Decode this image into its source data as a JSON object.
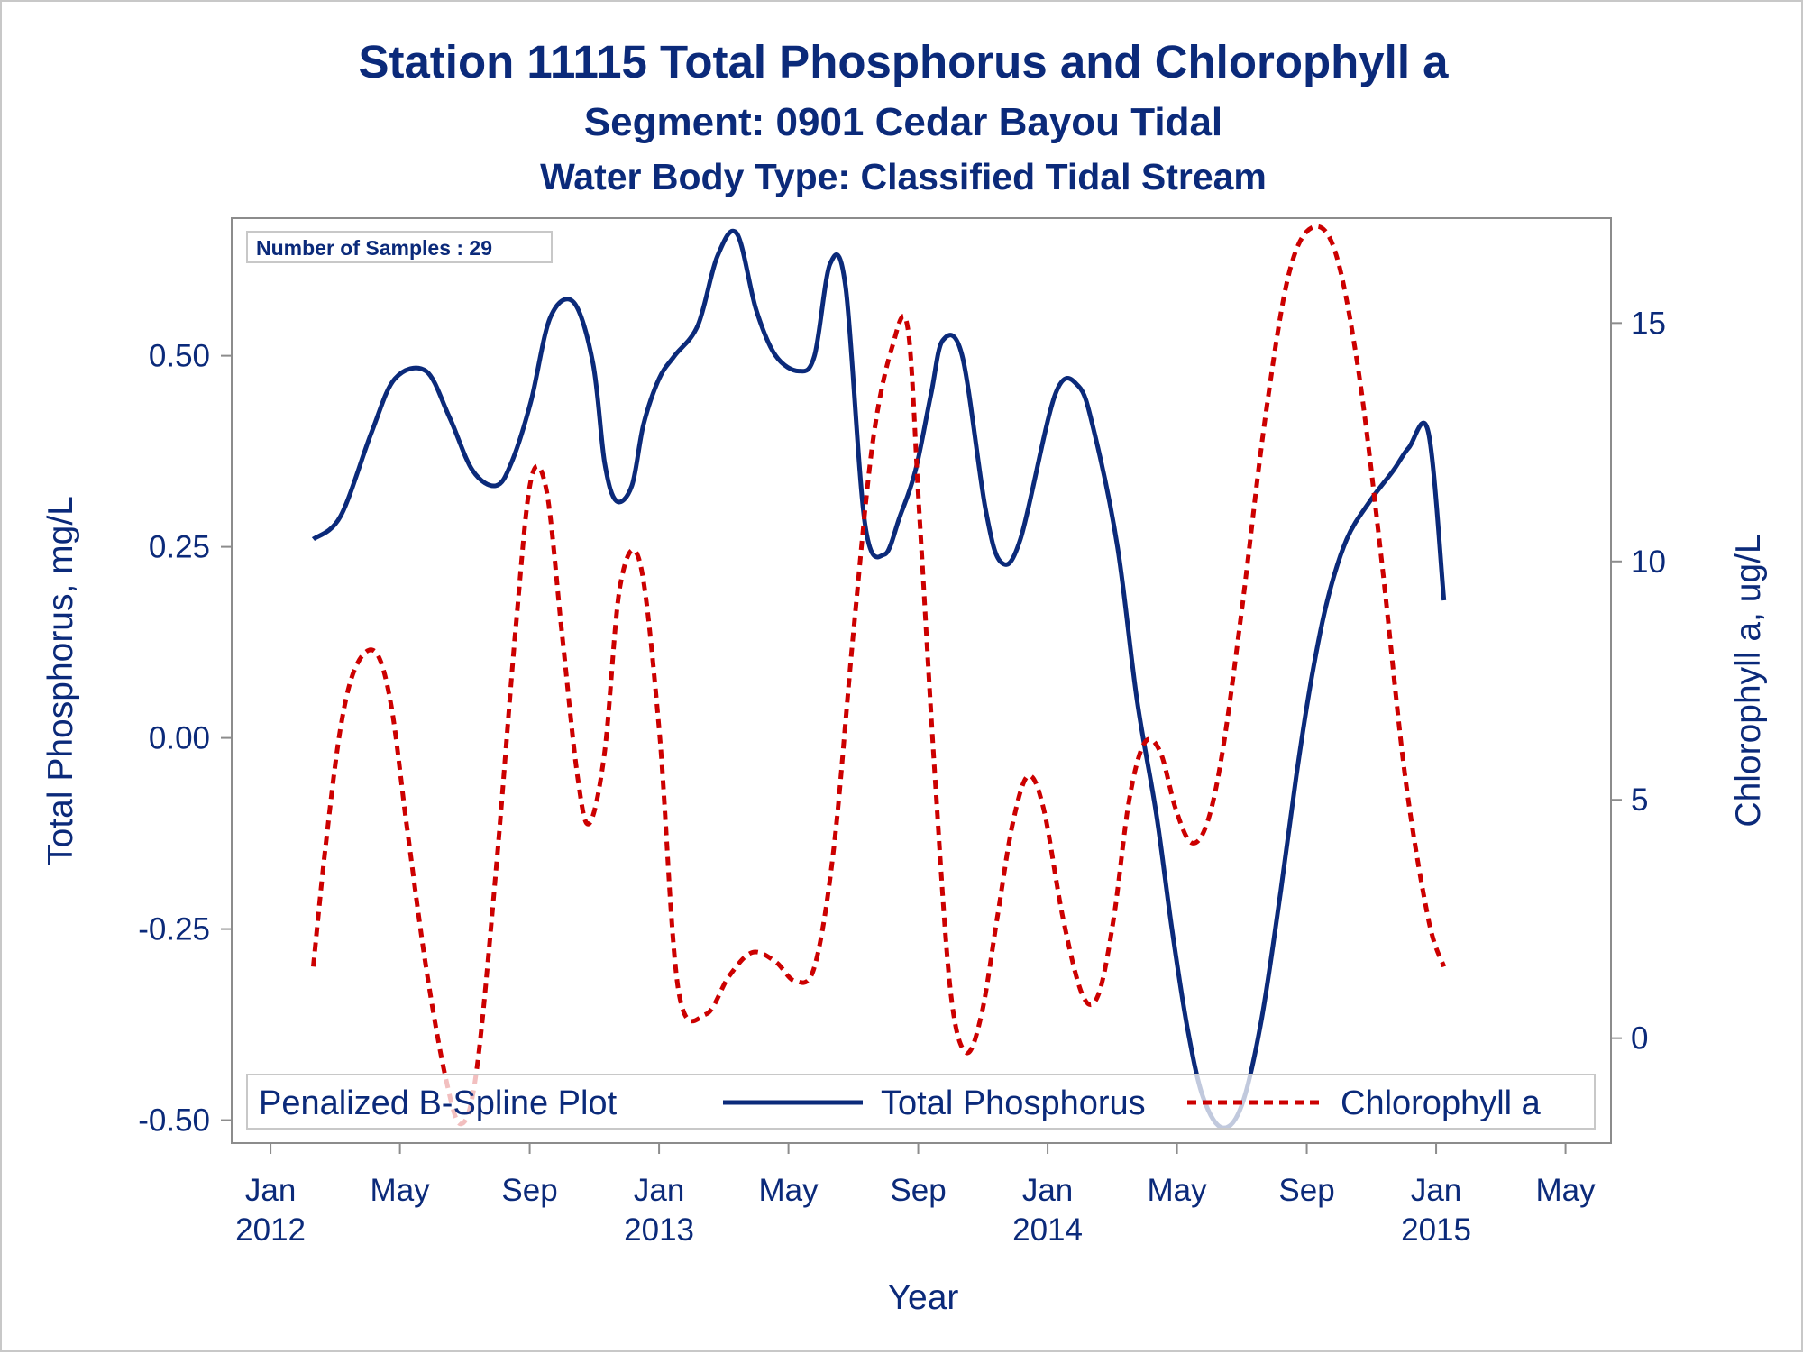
{
  "chart_data": {
    "type": "line",
    "title": "Station 11115  Total Phosphorus and Chlorophyll a",
    "subtitle": "Segment: 0901  Cedar Bayou Tidal",
    "subtitle2": "Water Body Type: Classified Tidal Stream",
    "xlabel": "Year",
    "ylabel_left": "Total Phosphorus, mg/L",
    "ylabel_right": "Chlorophyll a, ug/L",
    "inset_label": "Number of Samples : 29",
    "legend_title": "Penalized B-Spline Plot",
    "legend_position": "bottom-inside",
    "grid": false,
    "x_range": [
      2011.9,
      2015.45
    ],
    "y_left_range": [
      -0.53,
      0.68
    ],
    "y_right_range": [
      -2.2,
      17.2
    ],
    "x_ticks": [
      {
        "x": 2012.0,
        "month": "Jan",
        "year": "2012"
      },
      {
        "x": 2012.333,
        "month": "May",
        "year": ""
      },
      {
        "x": 2012.667,
        "month": "Sep",
        "year": ""
      },
      {
        "x": 2013.0,
        "month": "Jan",
        "year": "2013"
      },
      {
        "x": 2013.333,
        "month": "May",
        "year": ""
      },
      {
        "x": 2013.667,
        "month": "Sep",
        "year": ""
      },
      {
        "x": 2014.0,
        "month": "Jan",
        "year": "2014"
      },
      {
        "x": 2014.333,
        "month": "May",
        "year": ""
      },
      {
        "x": 2014.667,
        "month": "Sep",
        "year": ""
      },
      {
        "x": 2015.0,
        "month": "Jan",
        "year": "2015"
      },
      {
        "x": 2015.333,
        "month": "May",
        "year": ""
      }
    ],
    "y_left_ticks": [
      "0.50",
      "0.25",
      "0.00",
      "-0.25",
      "-0.50"
    ],
    "y_right_ticks": [
      "15",
      "10",
      "5",
      "0"
    ],
    "series": [
      {
        "name": "Total Phosphorus",
        "axis": "left",
        "color": "#0b2a7a",
        "style": "solid",
        "x": [
          2012.11,
          2012.18,
          2012.26,
          2012.32,
          2012.4,
          2012.46,
          2012.52,
          2012.58,
          2012.62,
          2012.67,
          2012.72,
          2012.78,
          2012.83,
          2012.86,
          2012.89,
          2012.93,
          2012.96,
          2013.0,
          2013.04,
          2013.1,
          2013.15,
          2013.2,
          2013.25,
          2013.3,
          2013.36,
          2013.4,
          2013.44,
          2013.48,
          2013.53,
          2013.58,
          2013.62,
          2013.66,
          2013.7,
          2013.73,
          2013.78,
          2013.84,
          2013.88,
          2013.93,
          2014.02,
          2014.08,
          2014.12,
          2014.18,
          2014.23,
          2014.28,
          2014.32,
          2014.36,
          2014.4,
          2014.45,
          2014.5,
          2014.55,
          2014.6,
          2014.64,
          2014.68,
          2014.72,
          2014.77,
          2014.83,
          2014.89,
          2014.93,
          2014.98,
          2015.02
        ],
        "y": [
          0.26,
          0.29,
          0.4,
          0.47,
          0.48,
          0.42,
          0.35,
          0.33,
          0.36,
          0.44,
          0.55,
          0.57,
          0.49,
          0.36,
          0.31,
          0.33,
          0.41,
          0.47,
          0.5,
          0.54,
          0.63,
          0.66,
          0.56,
          0.5,
          0.48,
          0.5,
          0.62,
          0.59,
          0.28,
          0.24,
          0.29,
          0.35,
          0.45,
          0.52,
          0.5,
          0.3,
          0.23,
          0.26,
          0.45,
          0.46,
          0.4,
          0.25,
          0.05,
          -0.1,
          -0.25,
          -0.38,
          -0.47,
          -0.51,
          -0.48,
          -0.37,
          -0.2,
          -0.05,
          0.08,
          0.18,
          0.26,
          0.31,
          0.35,
          0.38,
          0.4,
          0.18
        ]
      },
      {
        "name": "Chlorophyll a",
        "axis": "right",
        "color": "#cc0000",
        "style": "dashed",
        "x": [
          2012.11,
          2012.14,
          2012.18,
          2012.22,
          2012.27,
          2012.31,
          2012.35,
          2012.4,
          2012.45,
          2012.49,
          2012.53,
          2012.58,
          2012.63,
          2012.67,
          2012.71,
          2012.75,
          2012.79,
          2012.82,
          2012.86,
          2012.9,
          2012.95,
          2013.0,
          2013.05,
          2013.12,
          2013.18,
          2013.24,
          2013.3,
          2013.35,
          2013.4,
          2013.45,
          2013.5,
          2013.55,
          2013.6,
          2013.64,
          2013.67,
          2013.71,
          2013.75,
          2013.79,
          2013.83,
          2013.87,
          2013.91,
          2013.95,
          2013.99,
          2014.04,
          2014.09,
          2014.13,
          2014.17,
          2014.21,
          2014.25,
          2014.29,
          2014.33,
          2014.37,
          2014.41,
          2014.45,
          2014.5,
          2014.56,
          2014.62,
          2014.68,
          2014.74,
          2014.8,
          2014.86,
          2014.92,
          2014.98,
          2015.02
        ],
        "y": [
          1.5,
          3.9,
          6.5,
          7.8,
          8.1,
          7.0,
          4.5,
          1.5,
          -0.8,
          -1.8,
          -0.7,
          3.5,
          8.5,
          11.7,
          11.5,
          8.5,
          5.5,
          4.5,
          6.0,
          9.5,
          10.0,
          6.5,
          1.0,
          0.5,
          1.3,
          1.8,
          1.6,
          1.2,
          1.5,
          4.0,
          8.5,
          12.5,
          14.5,
          14.9,
          11.0,
          5.5,
          1.0,
          -0.3,
          0.5,
          2.5,
          4.5,
          5.5,
          4.8,
          2.5,
          0.9,
          0.9,
          2.5,
          5.0,
          6.2,
          6.0,
          4.8,
          4.1,
          4.5,
          6.0,
          9.0,
          13.0,
          16.0,
          17.0,
          16.5,
          14.0,
          10.0,
          5.5,
          2.5,
          1.5
        ]
      }
    ]
  }
}
